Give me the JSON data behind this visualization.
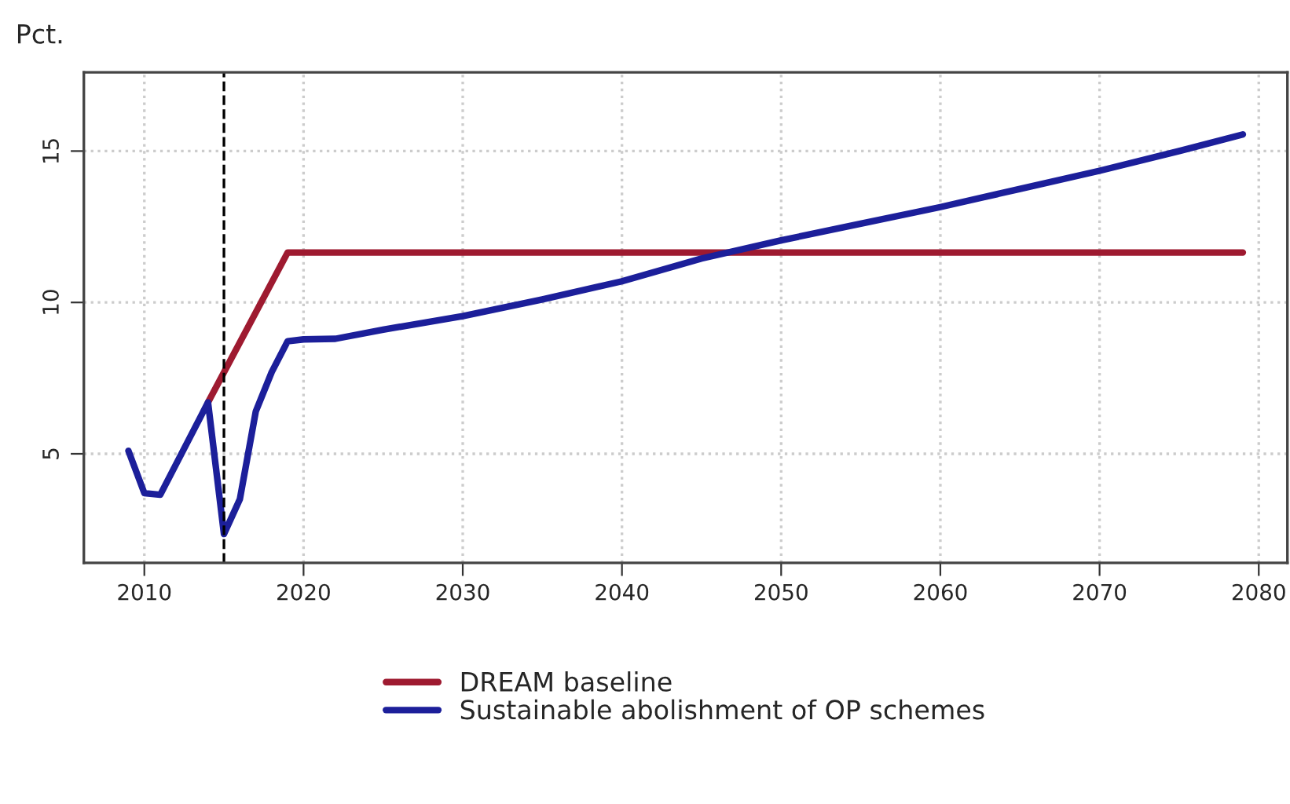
{
  "chart_data": {
    "type": "line",
    "ylabel": "Pct.",
    "series": [
      {
        "name": "DREAM baseline",
        "color": "#9e1a30",
        "x": [
          2014,
          2019,
          2079
        ],
        "values": [
          6.7,
          11.65,
          11.65
        ]
      },
      {
        "name": "Sustainable abolishment of OP schemes",
        "color": "#1c1f9a",
        "x": [
          2009,
          2010,
          2011,
          2014,
          2015,
          2016,
          2017,
          2018,
          2019,
          2020,
          2022,
          2025,
          2030,
          2035,
          2040,
          2045,
          2050,
          2055,
          2060,
          2065,
          2070,
          2075,
          2079
        ],
        "values": [
          5.1,
          3.7,
          3.65,
          6.7,
          2.35,
          3.5,
          6.4,
          7.7,
          8.72,
          8.78,
          8.8,
          9.1,
          9.55,
          10.1,
          10.7,
          11.45,
          12.05,
          12.6,
          13.15,
          13.75,
          14.35,
          15.0,
          15.55
        ]
      }
    ],
    "xlim": [
      2006.2,
      2081.8
    ],
    "xticks": [
      2010,
      2020,
      2030,
      2040,
      2050,
      2060,
      2070,
      2080
    ],
    "ylim": [
      1.4,
      17.6
    ],
    "yticks": [
      5,
      10,
      15
    ],
    "ref_lines": [
      {
        "axis": "x",
        "value": 2015,
        "color": "#000000",
        "line_style": "dashed"
      }
    ],
    "grid": true,
    "legend": "bottom",
    "line_style": "solid"
  }
}
